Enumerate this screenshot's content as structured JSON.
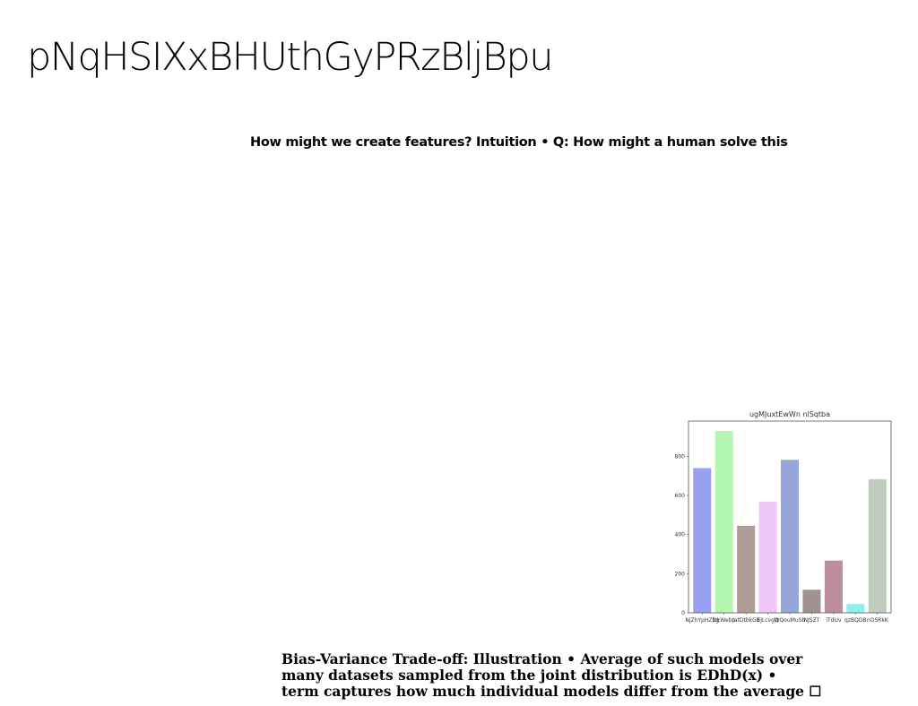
{
  "slide": {
    "title": "pNqHSIXxBHUthGyPRzBljBpu",
    "subtitle": "How might we create features? Intuition • Q: How might a human solve this",
    "caption_lines": [
      "Bias-Variance Trade-off: Illustration • Average of such models over",
      "many datasets sampled from the joint distribution is EDhD(x) •",
      "term captures how much individual models differ from the average ☐"
    ]
  },
  "chart_data": {
    "type": "bar",
    "title": "ugMJuxtEwWn nlSqtba",
    "xlabel": "",
    "ylabel": "",
    "categories": [
      "NjZhYpHZbg",
      "DkWebp",
      "tatDtbkGb",
      "EjLcvgQ",
      "WQouMuSb",
      "NJSZT",
      "iTdUv",
      "qzBQDB",
      "nOSRkK"
    ],
    "values": [
      740,
      930,
      445,
      568,
      782,
      118,
      267,
      45,
      683
    ],
    "colors": [
      "#99a0f2",
      "#b3f7b0",
      "#ae9d97",
      "#efc6f9",
      "#97a6da",
      "#a09293",
      "#bb8d9f",
      "#8df0ec",
      "#c0cdbc"
    ],
    "ylim": [
      0,
      980
    ],
    "yticks": [
      0,
      200,
      400,
      600,
      800
    ],
    "grid": false
  }
}
